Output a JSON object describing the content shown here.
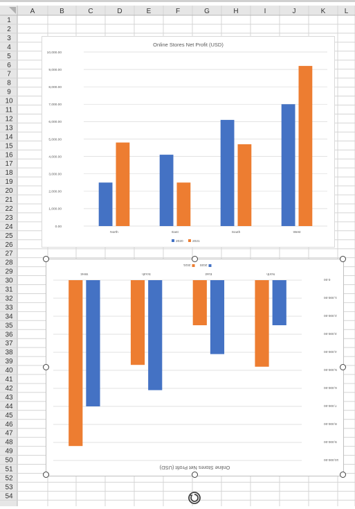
{
  "spreadsheet": {
    "columns": [
      "A",
      "B",
      "C",
      "D",
      "E",
      "F",
      "G",
      "H",
      "I",
      "J",
      "K",
      "L"
    ],
    "rows": [
      "1",
      "2",
      "3",
      "4",
      "5",
      "6",
      "7",
      "8",
      "9",
      "10",
      "11",
      "12",
      "13",
      "14",
      "15",
      "16",
      "17",
      "18",
      "19",
      "20",
      "21",
      "22",
      "23",
      "24",
      "25",
      "26",
      "27",
      "28",
      "29",
      "30",
      "31",
      "32",
      "33",
      "34",
      "35",
      "36",
      "37",
      "38",
      "39",
      "40",
      "41",
      "42",
      "43",
      "44",
      "45",
      "46",
      "47",
      "48",
      "49",
      "50",
      "51",
      "52",
      "53",
      "54"
    ]
  },
  "chart_data": [
    {
      "type": "bar",
      "title": "Online Stores Net Profit (USD)",
      "categories": [
        "North",
        "East",
        "South",
        "West"
      ],
      "series": [
        {
          "name": "2020",
          "values": [
            2500,
            4100,
            6100,
            7000
          ],
          "color": "#4472C4"
        },
        {
          "name": "2021",
          "values": [
            4800,
            2500,
            4700,
            9200
          ],
          "color": "#ED7D31"
        }
      ],
      "ylim": [
        0,
        10000
      ],
      "yticks": [
        "0.00",
        "1,000.00",
        "2,000.00",
        "3,000.00",
        "4,000.00",
        "5,000.00",
        "6,000.00",
        "7,000.00",
        "8,000.00",
        "9,000.00",
        "10,000.00"
      ],
      "grid": true,
      "legend": "bottom",
      "orientation": "upright"
    },
    {
      "type": "bar",
      "title": "Online Stores Net Profit (USD)",
      "categories": [
        "North",
        "East",
        "South",
        "West"
      ],
      "series": [
        {
          "name": "2020",
          "values": [
            2500,
            4100,
            6100,
            7000
          ],
          "color": "#4472C4"
        },
        {
          "name": "2021",
          "values": [
            4800,
            2500,
            4700,
            9200
          ],
          "color": "#ED7D31"
        }
      ],
      "ylim": [
        0,
        10000
      ],
      "yticks": [
        "0.00",
        "1,000.00",
        "2,000.00",
        "3,000.00",
        "4,000.00",
        "5,000.00",
        "6,000.00",
        "7,000.00",
        "8,000.00",
        "9,000.00",
        "10,000.00"
      ],
      "grid": true,
      "legend": "bottom",
      "orientation": "rotated 180 degrees (selected)"
    }
  ],
  "icons": {
    "rotate_handle": "rotate-icon"
  },
  "colors": {
    "grid_line": "#d9d9d9",
    "header_bg": "#e6e6e6",
    "selection": "#404040"
  }
}
